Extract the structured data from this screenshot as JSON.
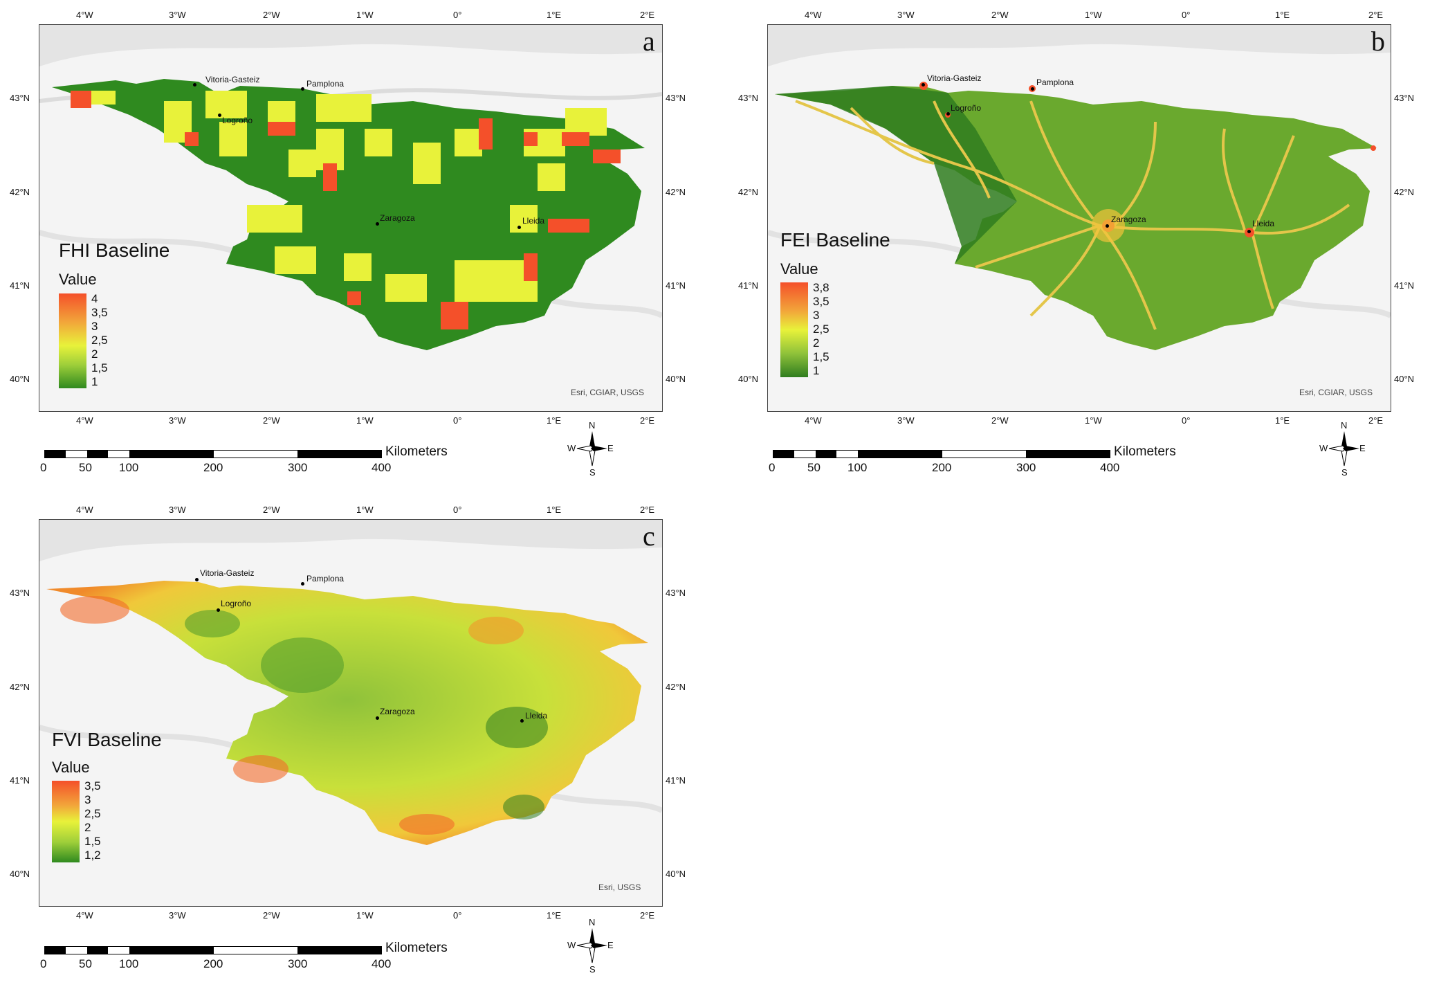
{
  "lon_labels": [
    "4°W",
    "3°W",
    "2°W",
    "1°W",
    "0°",
    "1°E",
    "2°E"
  ],
  "lat_labels": [
    "43°N",
    "42°N",
    "41°N",
    "40°N"
  ],
  "cities": [
    "Vitoria-Gasteiz",
    "Pamplona",
    "Logroño",
    "Zaragoza",
    "Lleida"
  ],
  "scale": {
    "ticks": [
      "0",
      "50",
      "100",
      "200",
      "300",
      "400"
    ],
    "unit": "Kilometers"
  },
  "compass": {
    "n": "N",
    "s": "S",
    "e": "E",
    "w": "W"
  },
  "panels": [
    {
      "letter": "a",
      "legend_title": "FHI Baseline",
      "legend_sub": "Value",
      "legend_values": [
        "4",
        "3,5",
        "3",
        "2,5",
        "2",
        "1,5",
        "1"
      ],
      "attribution": "Esri, CGIAR, USGS",
      "palette": {
        "low": "#2f8a1f",
        "mid": "#e8f23a",
        "high": "#f4502a"
      }
    },
    {
      "letter": "b",
      "legend_title": "FEI Baseline",
      "legend_sub": "Value",
      "legend_values": [
        "3,8",
        "3,5",
        "3",
        "2,5",
        "2",
        "1,5",
        "1"
      ],
      "attribution": "Esri, CGIAR, USGS",
      "palette": {
        "low": "#2f7d1f",
        "mid": "#8fc23a",
        "high": "#f4502a"
      }
    },
    {
      "letter": "c",
      "legend_title": "FVI Baseline",
      "legend_sub": "Value",
      "legend_values": [
        "3,5",
        "3",
        "2,5",
        "2",
        "1,5",
        "1,2"
      ],
      "attribution": "Esri, USGS",
      "palette": {
        "low": "#2f8a1f",
        "mid": "#cde33a",
        "high": "#f4502a"
      }
    }
  ]
}
